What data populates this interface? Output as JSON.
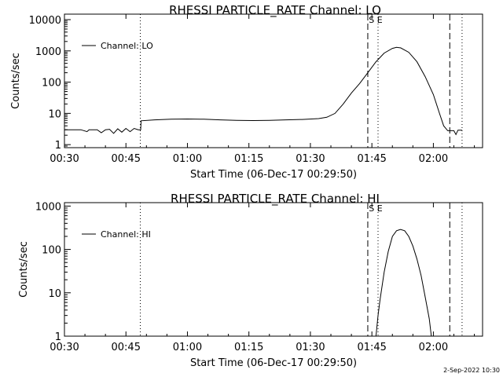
{
  "footer": {
    "date_stamp": "2-Sep-2022 10:30"
  },
  "chart_data": [
    {
      "type": "line",
      "title": "RHESSI PARTICLE_RATE Channel: LO",
      "xlabel": "Start Time (06-Dec-17 00:29:50)",
      "ylabel": "Counts/sec",
      "x_units": "minutes since 00:30",
      "x_ticks": [
        "00:30",
        "00:45",
        "01:00",
        "01:15",
        "01:30",
        "01:45",
        "02:00"
      ],
      "x_tick_values": [
        0,
        15,
        30,
        45,
        60,
        75,
        90
      ],
      "xlim": [
        0,
        102
      ],
      "y_scale": "log",
      "ylim": [
        0.8,
        15000
      ],
      "y_ticks": [
        "1",
        "10",
        "100",
        "1000",
        "10000"
      ],
      "y_tick_values": [
        1,
        10,
        100,
        1000,
        10000
      ],
      "legend": {
        "label": "Channel: LO",
        "position": "top-left"
      },
      "markers": [
        {
          "x": 18.5,
          "style": "dotted"
        },
        {
          "x": 74,
          "style": "dashed",
          "label": "S E"
        },
        {
          "x": 76.5,
          "style": "dotted"
        },
        {
          "x": 94,
          "style": "dashed"
        },
        {
          "x": 97,
          "style": "dotted"
        }
      ],
      "series": [
        {
          "name": "Channel: LO",
          "points": [
            [
              0,
              3
            ],
            [
              4,
              3
            ],
            [
              5.5,
              2.6
            ],
            [
              6,
              3
            ],
            [
              8,
              3
            ],
            [
              9,
              2.4
            ],
            [
              10,
              3
            ],
            [
              11,
              3.1
            ],
            [
              12,
              2.3
            ],
            [
              13,
              3.2
            ],
            [
              14,
              2.5
            ],
            [
              15,
              3.3
            ],
            [
              16,
              2.6
            ],
            [
              17,
              3.3
            ],
            [
              18,
              3
            ],
            [
              18.6,
              3
            ],
            [
              18.7,
              5.8
            ],
            [
              22,
              6.2
            ],
            [
              26,
              6.5
            ],
            [
              30,
              6.6
            ],
            [
              34,
              6.5
            ],
            [
              38,
              6.2
            ],
            [
              42,
              6
            ],
            [
              46,
              5.9
            ],
            [
              50,
              6
            ],
            [
              54,
              6.2
            ],
            [
              58,
              6.4
            ],
            [
              62,
              6.8
            ],
            [
              64,
              7.5
            ],
            [
              66,
              10
            ],
            [
              68,
              20
            ],
            [
              70,
              45
            ],
            [
              72,
              90
            ],
            [
              74,
              200
            ],
            [
              76,
              450
            ],
            [
              78,
              850
            ],
            [
              80,
              1200
            ],
            [
              81,
              1300
            ],
            [
              82,
              1250
            ],
            [
              84,
              900
            ],
            [
              86,
              450
            ],
            [
              88,
              150
            ],
            [
              90,
              40
            ],
            [
              91.5,
              10
            ],
            [
              92.5,
              4
            ],
            [
              93.5,
              2.8
            ],
            [
              95,
              2.8
            ],
            [
              95.5,
              2.1
            ],
            [
              96,
              2.9
            ],
            [
              97,
              2.9
            ]
          ]
        }
      ]
    },
    {
      "type": "line",
      "title": "RHESSI PARTICLE_RATE Channel: HI",
      "xlabel": "Start Time (06-Dec-17 00:29:50)",
      "ylabel": "Counts/sec",
      "x_units": "minutes since 00:30",
      "x_ticks": [
        "00:30",
        "00:45",
        "01:00",
        "01:15",
        "01:30",
        "01:45",
        "02:00"
      ],
      "x_tick_values": [
        0,
        15,
        30,
        45,
        60,
        75,
        90
      ],
      "xlim": [
        0,
        102
      ],
      "y_scale": "log",
      "ylim": [
        1,
        1200
      ],
      "y_ticks": [
        "1",
        "10",
        "100",
        "1000"
      ],
      "y_tick_values": [
        1,
        10,
        100,
        1000
      ],
      "legend": {
        "label": "Channel: HI",
        "position": "top-left"
      },
      "markers": [
        {
          "x": 18.5,
          "style": "dotted"
        },
        {
          "x": 74,
          "style": "dashed",
          "label": "S E"
        },
        {
          "x": 76.5,
          "style": "dotted"
        },
        {
          "x": 94,
          "style": "dashed"
        },
        {
          "x": 97,
          "style": "dotted"
        }
      ],
      "series": [
        {
          "name": "Channel: HI",
          "points": [
            [
              76,
              1
            ],
            [
              76.5,
              3
            ],
            [
              77,
              7
            ],
            [
              78,
              30
            ],
            [
              79,
              90
            ],
            [
              80,
              200
            ],
            [
              81,
              270
            ],
            [
              82,
              290
            ],
            [
              83,
              270
            ],
            [
              84,
              200
            ],
            [
              85,
              120
            ],
            [
              86,
              60
            ],
            [
              87,
              25
            ],
            [
              88,
              8
            ],
            [
              89,
              2.5
            ],
            [
              89.5,
              1
            ]
          ]
        }
      ]
    }
  ]
}
